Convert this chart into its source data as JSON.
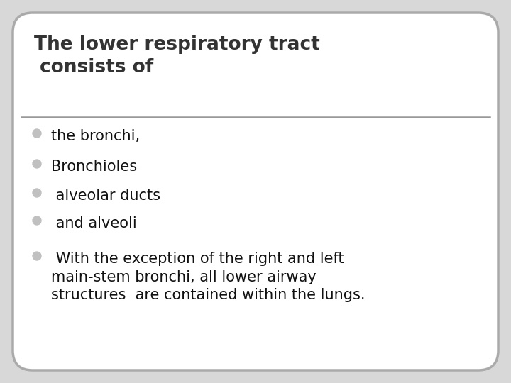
{
  "title_line1": "The lower respiratory tract",
  "title_line2": "consists of",
  "title_color": "#333333",
  "title_fontsize": 19,
  "title_fontweight": "bold",
  "separator_color": "#999999",
  "bullet_color": "#c0c0c0",
  "bullet_items": [
    "the bronchi,",
    "Bronchioles",
    " alveolar ducts",
    " and alveoli",
    " With the exception of the right and left\nmain-stem bronchi, all lower airway\nstructures  are contained within the lungs."
  ],
  "body_fontsize": 15,
  "body_color": "#111111",
  "background_color": "#d8d8d8",
  "box_edge_color": "#aaaaaa",
  "box_face_color": "#ffffff",
  "fig_width": 7.2,
  "fig_height": 5.4
}
